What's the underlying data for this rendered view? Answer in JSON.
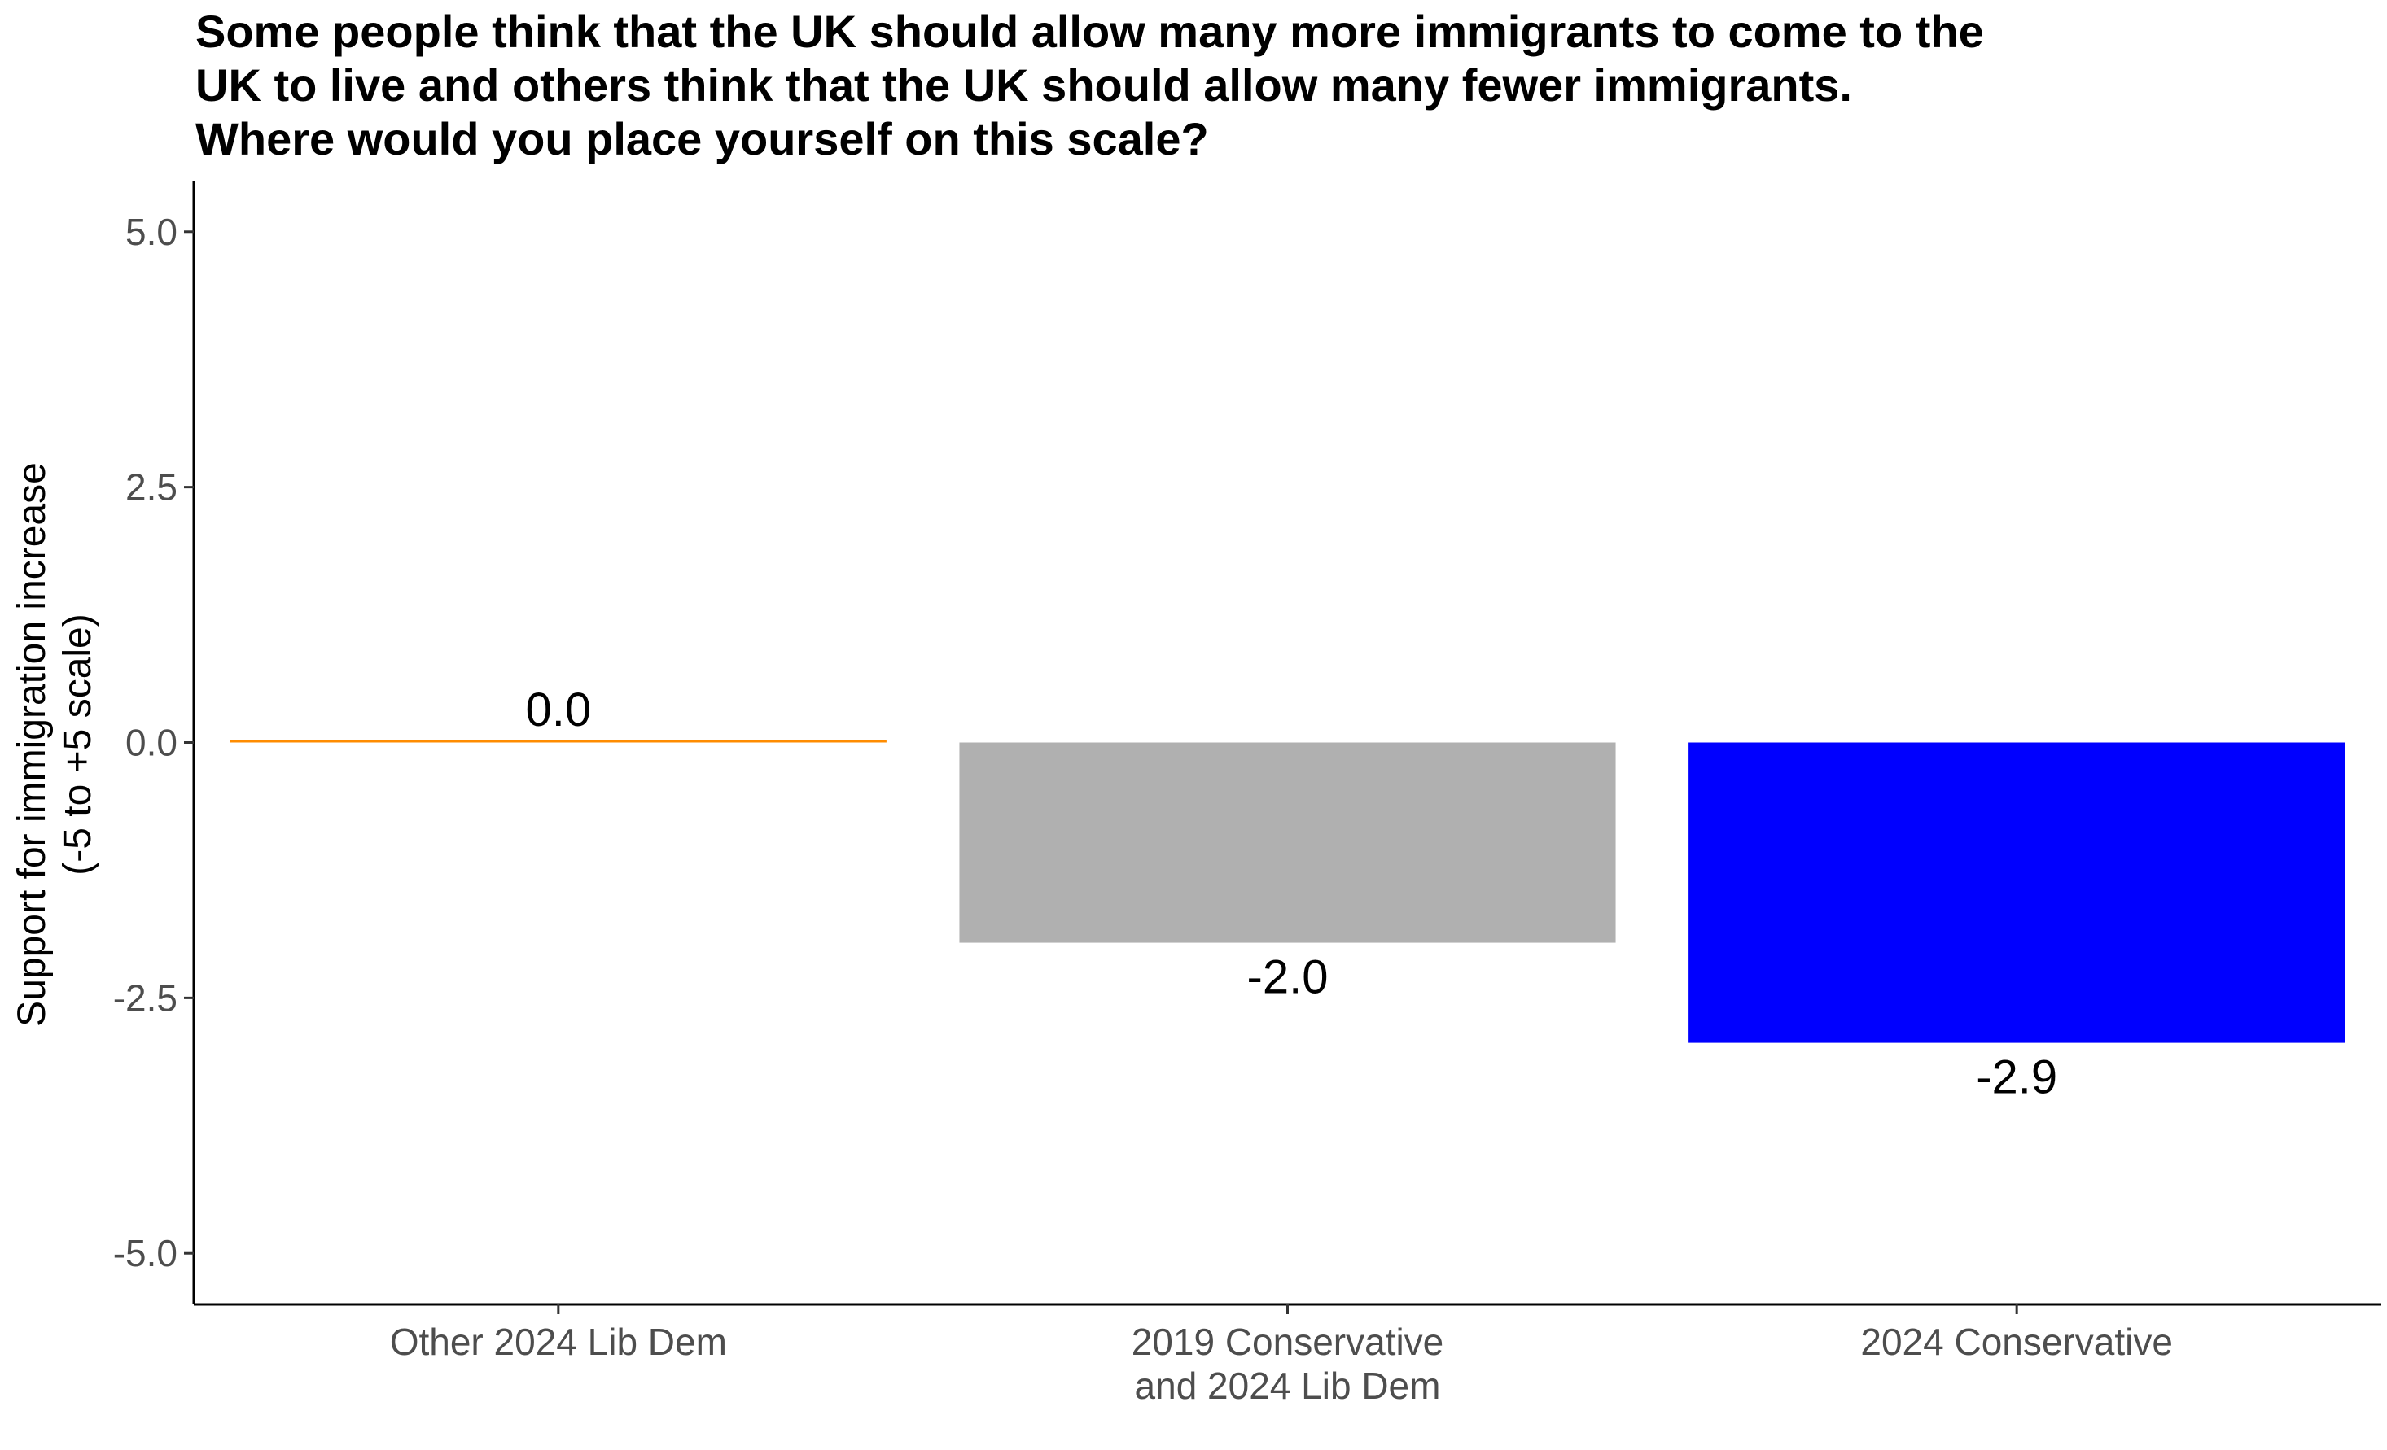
{
  "chart_data": {
    "type": "bar",
    "title": [
      "Some people think that the UK should allow many more immigrants to come to the",
      "UK to live and others think that the UK should allow many fewer immigrants.",
      "Where would you place yourself on this scale?"
    ],
    "xlabel": "",
    "ylabel": [
      "Support for immigration increase",
      "(-5 to +5 scale)"
    ],
    "ylim": [
      -5.5,
      5.5
    ],
    "yticks": [
      {
        "value": 5.0,
        "label": "5.0"
      },
      {
        "value": 2.5,
        "label": "2.5"
      },
      {
        "value": 0.0,
        "label": "0.0"
      },
      {
        "value": -2.5,
        "label": "-2.5"
      },
      {
        "value": -5.0,
        "label": "-5.0"
      }
    ],
    "categories": [
      [
        "Other 2024 Lib Dem"
      ],
      [
        "2019 Conservative",
        "and 2024 Lib Dem"
      ],
      [
        "2024 Conservative"
      ]
    ],
    "values": [
      0.02,
      -1.96,
      -2.94
    ],
    "data_labels": [
      "0.0",
      "-2.0",
      "-2.9"
    ],
    "colors": [
      "#FF8C00",
      "#B0B0B0",
      "#0000FF"
    ],
    "grid": false,
    "legend": "none"
  }
}
